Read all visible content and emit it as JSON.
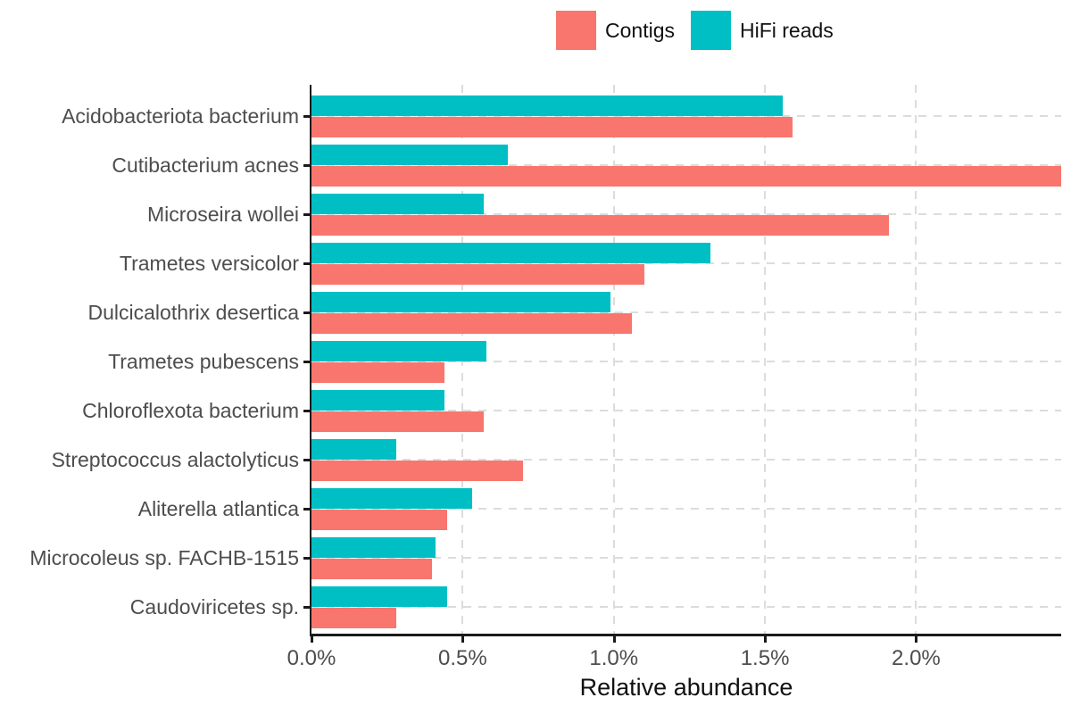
{
  "legend": {
    "items": [
      {
        "label": "Contigs",
        "color": "#F8766D"
      },
      {
        "label": "HiFi reads",
        "color": "#00BFC4"
      }
    ]
  },
  "chart_data": {
    "type": "bar",
    "orientation": "horizontal",
    "title": "",
    "xlabel": "Relative abundance",
    "ylabel": "",
    "legend_position": "top",
    "grid": "dashed",
    "categories": [
      "Acidobacteriota bacterium",
      "Cutibacterium acnes",
      "Microseira wollei",
      "Trametes versicolor",
      "Dulcicalothrix desertica",
      "Trametes pubescens",
      "Chloroflexota bacterium",
      "Streptococcus alactolyticus",
      "Aliterella atlantica",
      "Microcoleus sp. FACHB-1515",
      "Caudoviricetes sp."
    ],
    "series": [
      {
        "name": "Contigs",
        "color": "#F8766D",
        "values": [
          1.59,
          2.48,
          1.91,
          1.1,
          1.06,
          0.44,
          0.57,
          0.7,
          0.45,
          0.4,
          0.28
        ]
      },
      {
        "name": "HiFi reads",
        "color": "#00BFC4",
        "values": [
          1.56,
          0.65,
          0.57,
          1.32,
          0.99,
          0.58,
          0.44,
          0.28,
          0.53,
          0.41,
          0.45
        ]
      }
    ],
    "bar_order_top_to_bottom": [
      "HiFi reads",
      "Contigs"
    ],
    "x_ticks": [
      "0.0%",
      "0.5%",
      "1.0%",
      "1.5%",
      "2.0%"
    ],
    "x_tick_values": [
      0,
      0.5,
      1.0,
      1.5,
      2.0
    ],
    "xlim": [
      0,
      2.48
    ]
  }
}
